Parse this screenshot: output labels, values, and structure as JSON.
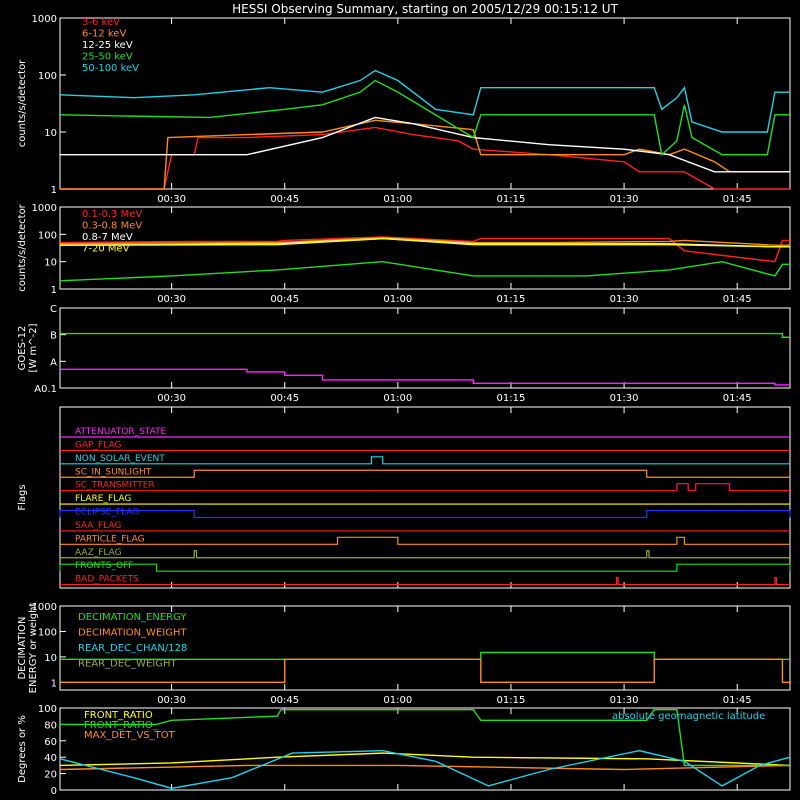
{
  "title": "HESSI Observing Summary, starting on 2005/12/29 00:15:12 UT",
  "time_ticks": [
    "00:30",
    "00:45",
    "01:00",
    "01:15",
    "01:30",
    "01:45"
  ],
  "time_range_min": [
    15.2,
    112
  ],
  "colors": {
    "red": "#ff2020",
    "orange": "#ff8c1a",
    "yellow": "#ffff00",
    "green": "#22dd22",
    "cyan": "#22d0e8",
    "magenta": "#ff22ff",
    "blue": "#2233ff",
    "olive": "#99aa33",
    "white": "#ffffff"
  },
  "chart_data": [
    {
      "id": "lowE",
      "type": "line",
      "ylabel": "counts/s/detector",
      "yscale": "log",
      "ylim": [
        1,
        1000
      ],
      "yticks": [
        "1",
        "10",
        "100",
        "1000"
      ],
      "series": [
        {
          "name": "3-6 keV",
          "color": "red",
          "points": [
            [
              15.2,
              1
            ],
            [
              29,
              1
            ],
            [
              30,
              4
            ],
            [
              33,
              4
            ],
            [
              33.5,
              8
            ],
            [
              40,
              8
            ],
            [
              50,
              9
            ],
            [
              57,
              12
            ],
            [
              62,
              9
            ],
            [
              68,
              7
            ],
            [
              70,
              5
            ],
            [
              80,
              4
            ],
            [
              90,
              3
            ],
            [
              92,
              2
            ],
            [
              97,
              2
            ],
            [
              98,
              2
            ],
            [
              102,
              1
            ],
            [
              112,
              1
            ]
          ]
        },
        {
          "name": "6-12 keV",
          "color": "orange",
          "points": [
            [
              15.2,
              1
            ],
            [
              29,
              1
            ],
            [
              29.5,
              8
            ],
            [
              40,
              9
            ],
            [
              50,
              10
            ],
            [
              57,
              16
            ],
            [
              62,
              14
            ],
            [
              70,
              11
            ],
            [
              71,
              4
            ],
            [
              90,
              4
            ],
            [
              92,
              5
            ],
            [
              96,
              4
            ],
            [
              98,
              5
            ],
            [
              102,
              3
            ],
            [
              104,
              2
            ],
            [
              112,
              2
            ]
          ]
        },
        {
          "name": "12-25 keV",
          "color": "white",
          "points": [
            [
              15.2,
              4
            ],
            [
              29,
              4
            ],
            [
              40,
              4
            ],
            [
              50,
              8
            ],
            [
              57,
              18
            ],
            [
              62,
              14
            ],
            [
              70,
              8
            ],
            [
              80,
              6
            ],
            [
              90,
              5
            ],
            [
              96,
              4
            ],
            [
              102,
              2
            ],
            [
              112,
              2
            ]
          ]
        },
        {
          "name": "25-50 keV",
          "color": "green",
          "points": [
            [
              15.2,
              20
            ],
            [
              35,
              18
            ],
            [
              45,
              25
            ],
            [
              50,
              30
            ],
            [
              55,
              50
            ],
            [
              57,
              80
            ],
            [
              60,
              50
            ],
            [
              65,
              20
            ],
            [
              70,
              8
            ],
            [
              71,
              20
            ],
            [
              94,
              20
            ],
            [
              95,
              4
            ],
            [
              97,
              7
            ],
            [
              98,
              30
            ],
            [
              99,
              8
            ],
            [
              103,
              4
            ],
            [
              109,
              4
            ],
            [
              110,
              20
            ],
            [
              112,
              20
            ]
          ]
        },
        {
          "name": "50-100 keV",
          "color": "cyan",
          "points": [
            [
              15.2,
              45
            ],
            [
              25,
              40
            ],
            [
              33,
              45
            ],
            [
              43,
              60
            ],
            [
              50,
              50
            ],
            [
              55,
              80
            ],
            [
              57,
              120
            ],
            [
              60,
              80
            ],
            [
              65,
              25
            ],
            [
              70,
              20
            ],
            [
              71,
              60
            ],
            [
              94,
              60
            ],
            [
              95,
              25
            ],
            [
              97,
              40
            ],
            [
              98,
              60
            ],
            [
              99,
              15
            ],
            [
              103,
              10
            ],
            [
              109,
              10
            ],
            [
              110,
              50
            ],
            [
              112,
              50
            ]
          ]
        }
      ]
    },
    {
      "id": "highE",
      "type": "line",
      "ylabel": "counts/s/detector",
      "yscale": "log",
      "ylim": [
        1,
        1000
      ],
      "yticks": [
        "1",
        "10",
        "100",
        "1000"
      ],
      "series": [
        {
          "name": "0.1-0.3 MeV",
          "color": "red",
          "points": [
            [
              15.2,
              50
            ],
            [
              33,
              55
            ],
            [
              44,
              55
            ],
            [
              45,
              60
            ],
            [
              58,
              80
            ],
            [
              70,
              55
            ],
            [
              71,
              70
            ],
            [
              96,
              70
            ],
            [
              98,
              25
            ],
            [
              103,
              17
            ],
            [
              110,
              10
            ],
            [
              111,
              60
            ],
            [
              112,
              60
            ]
          ]
        },
        {
          "name": "0.3-0.8 MeV",
          "color": "orange",
          "points": [
            [
              15.2,
              45
            ],
            [
              30,
              48
            ],
            [
              44,
              50
            ],
            [
              58,
              75
            ],
            [
              70,
              50
            ],
            [
              80,
              50
            ],
            [
              96,
              55
            ],
            [
              98,
              60
            ],
            [
              110,
              40
            ],
            [
              112,
              40
            ]
          ]
        },
        {
          "name": "0.8-7 MeV",
          "color": "white",
          "points": [
            [
              15.2,
              40
            ],
            [
              44,
              45
            ],
            [
              58,
              70
            ],
            [
              70,
              45
            ],
            [
              96,
              45
            ],
            [
              110,
              35
            ],
            [
              112,
              35
            ]
          ]
        },
        {
          "name": "7-20 MeV",
          "color": "yellow",
          "points": [
            [
              15.2,
              40
            ],
            [
              44,
              42
            ],
            [
              58,
              70
            ],
            [
              70,
              42
            ],
            [
              96,
              42
            ],
            [
              110,
              35
            ],
            [
              112,
              35
            ]
          ]
        },
        {
          "name": "",
          "color": "green",
          "points": [
            [
              15.2,
              2
            ],
            [
              30,
              3
            ],
            [
              44,
              5
            ],
            [
              58,
              10
            ],
            [
              70,
              3
            ],
            [
              85,
              3
            ],
            [
              96,
              5
            ],
            [
              103,
              10
            ],
            [
              110,
              3
            ],
            [
              111,
              8
            ],
            [
              112,
              8
            ]
          ]
        }
      ]
    },
    {
      "id": "goes",
      "type": "line",
      "ylabel": "GOES-12",
      "ylabel2": "[W m^-2]",
      "yscale": "log",
      "ylim": [
        0.01,
        10
      ],
      "yticks": [
        "A0.1",
        "A",
        "B",
        "C"
      ],
      "series": [
        {
          "name": "",
          "color": "green",
          "points": [
            [
              15.2,
              1.1
            ],
            [
              111,
              0.8
            ],
            [
              112,
              0.8
            ]
          ]
        },
        {
          "name": "",
          "color": "magenta",
          "points": [
            [
              15.2,
              0.05
            ],
            [
              40,
              0.04
            ],
            [
              45,
              0.03
            ],
            [
              50,
              0.02
            ],
            [
              58,
              0.02
            ],
            [
              70,
              0.015
            ],
            [
              110,
              0.013
            ],
            [
              112,
              0.013
            ]
          ]
        }
      ]
    },
    {
      "id": "flags",
      "type": "line",
      "ylabel": "Flags",
      "flags": [
        {
          "name": "ATTENUATOR_STATE",
          "color": "magenta",
          "highs": []
        },
        {
          "name": "GAP_FLAG",
          "color": "red",
          "highs": []
        },
        {
          "name": "NON_SOLAR_EVENT",
          "color": "cyan",
          "highs": [
            [
              56.5,
              58
            ]
          ]
        },
        {
          "name": "SC_IN_SUNLIGHT",
          "color": "orange",
          "highs": [
            [
              33,
              93
            ]
          ]
        },
        {
          "name": "SC_TRANSMITTER",
          "color": "red",
          "highs": [
            [
              97,
              98.5
            ],
            [
              99.5,
              104
            ]
          ]
        },
        {
          "name": "FLARE_FLAG",
          "color": "yellow",
          "highs": []
        },
        {
          "name": "ECLIPSE_FLAG",
          "color": "blue",
          "highs": [
            [
              15.2,
              33
            ],
            [
              93,
              112
            ]
          ]
        },
        {
          "name": "SAA_FLAG",
          "color": "red",
          "highs": []
        },
        {
          "name": "PARTICLE_FLAG",
          "color": "orange",
          "highs": [
            [
              52,
              60
            ],
            [
              97,
              98
            ]
          ]
        },
        {
          "name": "AAZ_FLAG",
          "color": "olive",
          "highs": [
            [
              33,
              33.3
            ],
            [
              93,
              93.3
            ]
          ]
        },
        {
          "name": "FRONTS_OFF",
          "color": "green",
          "highs": [
            [
              15.2,
              28
            ],
            [
              97,
              112
            ]
          ]
        },
        {
          "name": "BAD_PACKETS",
          "color": "red",
          "highs": [
            [
              89,
              89.2
            ],
            [
              110,
              110.2
            ]
          ]
        }
      ]
    },
    {
      "id": "decim",
      "type": "line",
      "ylabel": "DECIMATION",
      "ylabel2": "ENERGY or weight",
      "yscale": "log",
      "ylim": [
        0.5,
        1000
      ],
      "yticks": [
        "1",
        "10",
        "100",
        "1000"
      ],
      "series": [
        {
          "name": "DECIMATION_ENERGY",
          "color": "green",
          "points": [
            [
              15.2,
              8
            ],
            [
              70,
              8
            ],
            [
              71,
              15
            ],
            [
              93,
              15
            ],
            [
              94,
              8
            ],
            [
              112,
              8
            ]
          ]
        },
        {
          "name": "DECIMATION_WEIGHT",
          "color": "orange",
          "points": [
            [
              15.2,
              1
            ],
            [
              44,
              1
            ],
            [
              45,
              8
            ],
            [
              70,
              8
            ],
            [
              71,
              1
            ],
            [
              93,
              1
            ],
            [
              94,
              8
            ],
            [
              110,
              8
            ],
            [
              111,
              1
            ],
            [
              112,
              1
            ]
          ]
        },
        {
          "name": "REAR_DEC_CHAN/128",
          "color": "cyan",
          "points": []
        },
        {
          "name": "REAR_DEC_WEIGHT",
          "color": "olive",
          "points": []
        }
      ]
    },
    {
      "id": "ratio",
      "type": "line",
      "ylabel": "Degrees or %",
      "yscale": "linear",
      "ylim": [
        0,
        100
      ],
      "yticks": [
        "0",
        "20",
        "40",
        "60",
        "80",
        "100"
      ],
      "annotation": "absolute geomagnetic latitude",
      "series": [
        {
          "name": "FRONT_RATIO",
          "color": "yellow",
          "points": [
            [
              15.2,
              30
            ],
            [
              30,
              33
            ],
            [
              44,
              40
            ],
            [
              58,
              45
            ],
            [
              70,
              40
            ],
            [
              93,
              38
            ],
            [
              112,
              30
            ]
          ]
        },
        {
          "name": "FRONT_RATIO_",
          "color": "green",
          "points": [
            [
              15.2,
              80
            ],
            [
              28,
              80
            ],
            [
              30,
              85
            ],
            [
              44,
              90
            ],
            [
              44.5,
              98
            ],
            [
              70,
              98
            ],
            [
              71,
              85
            ],
            [
              93,
              85
            ],
            [
              94,
              98
            ],
            [
              97,
              98
            ],
            [
              98,
              30
            ],
            [
              112,
              30
            ]
          ]
        },
        {
          "name": "MAX_DET_VS_TOT",
          "color": "orange",
          "points": [
            [
              15.2,
              25
            ],
            [
              40,
              30
            ],
            [
              60,
              30
            ],
            [
              90,
              25
            ],
            [
              112,
              30
            ]
          ]
        },
        {
          "name": "absolute geomagnetic latitude",
          "color": "cyan",
          "points": [
            [
              15.2,
              38
            ],
            [
              25,
              15
            ],
            [
              30,
              2
            ],
            [
              38,
              15
            ],
            [
              46,
              45
            ],
            [
              58,
              48
            ],
            [
              65,
              35
            ],
            [
              72,
              5
            ],
            [
              80,
              25
            ],
            [
              92,
              48
            ],
            [
              98,
              35
            ],
            [
              103,
              5
            ],
            [
              108,
              30
            ],
            [
              112,
              40
            ]
          ]
        }
      ]
    }
  ]
}
